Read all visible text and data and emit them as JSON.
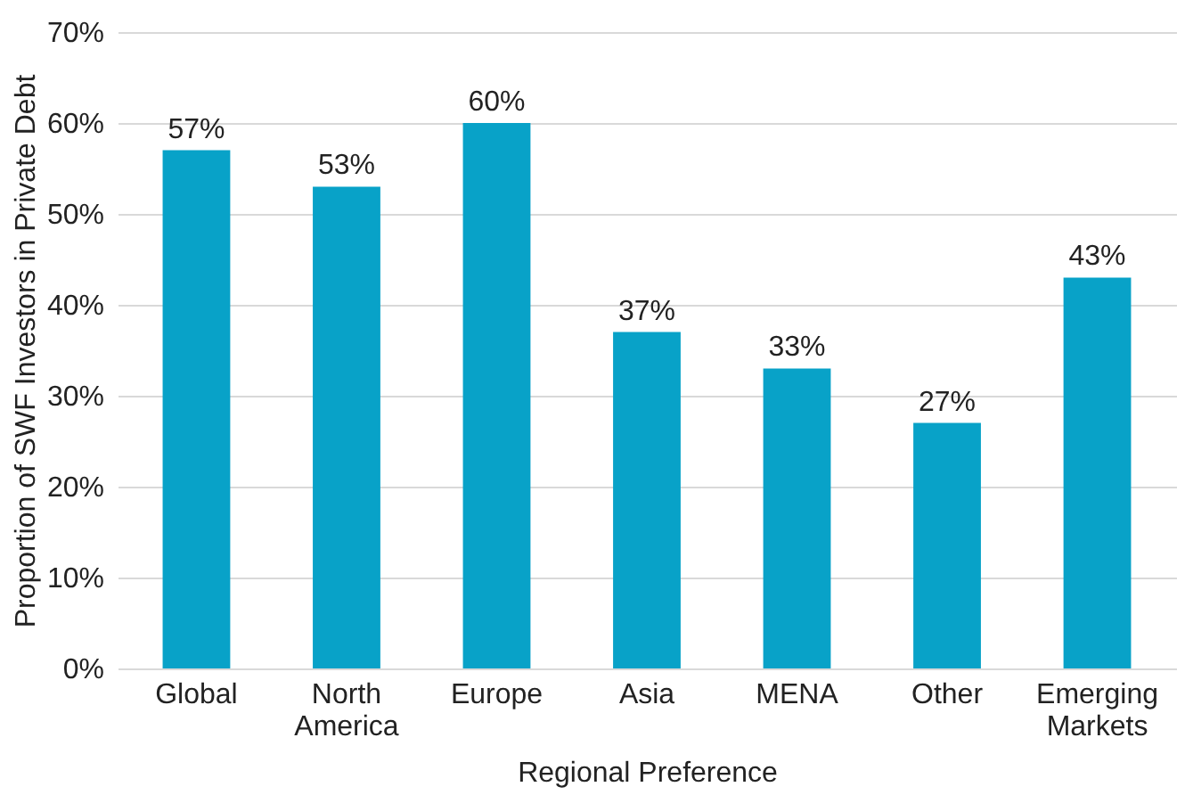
{
  "chart_data": {
    "type": "bar",
    "categories": [
      "Global",
      "North America",
      "Europe",
      "Asia",
      "MENA",
      "Other",
      "Emerging Markets"
    ],
    "values": [
      57,
      53,
      60,
      37,
      33,
      27,
      43
    ],
    "value_labels": [
      "57%",
      "53%",
      "60%",
      "37%",
      "33%",
      "27%",
      "43%"
    ],
    "color": "#08a2c8",
    "xlabel": "Regional Preference",
    "ylabel": "Proportion of SWF Investors in Private Debt",
    "ylim": [
      0,
      70
    ],
    "yticks": [
      {
        "value": 0,
        "label": "0%"
      },
      {
        "value": 10,
        "label": "10%"
      },
      {
        "value": 20,
        "label": "20%"
      },
      {
        "value": 30,
        "label": "30%"
      },
      {
        "value": 40,
        "label": "40%"
      },
      {
        "value": 50,
        "label": "50%"
      },
      {
        "value": 60,
        "label": "60%"
      },
      {
        "value": 70,
        "label": "70%"
      }
    ],
    "grid": "y"
  }
}
